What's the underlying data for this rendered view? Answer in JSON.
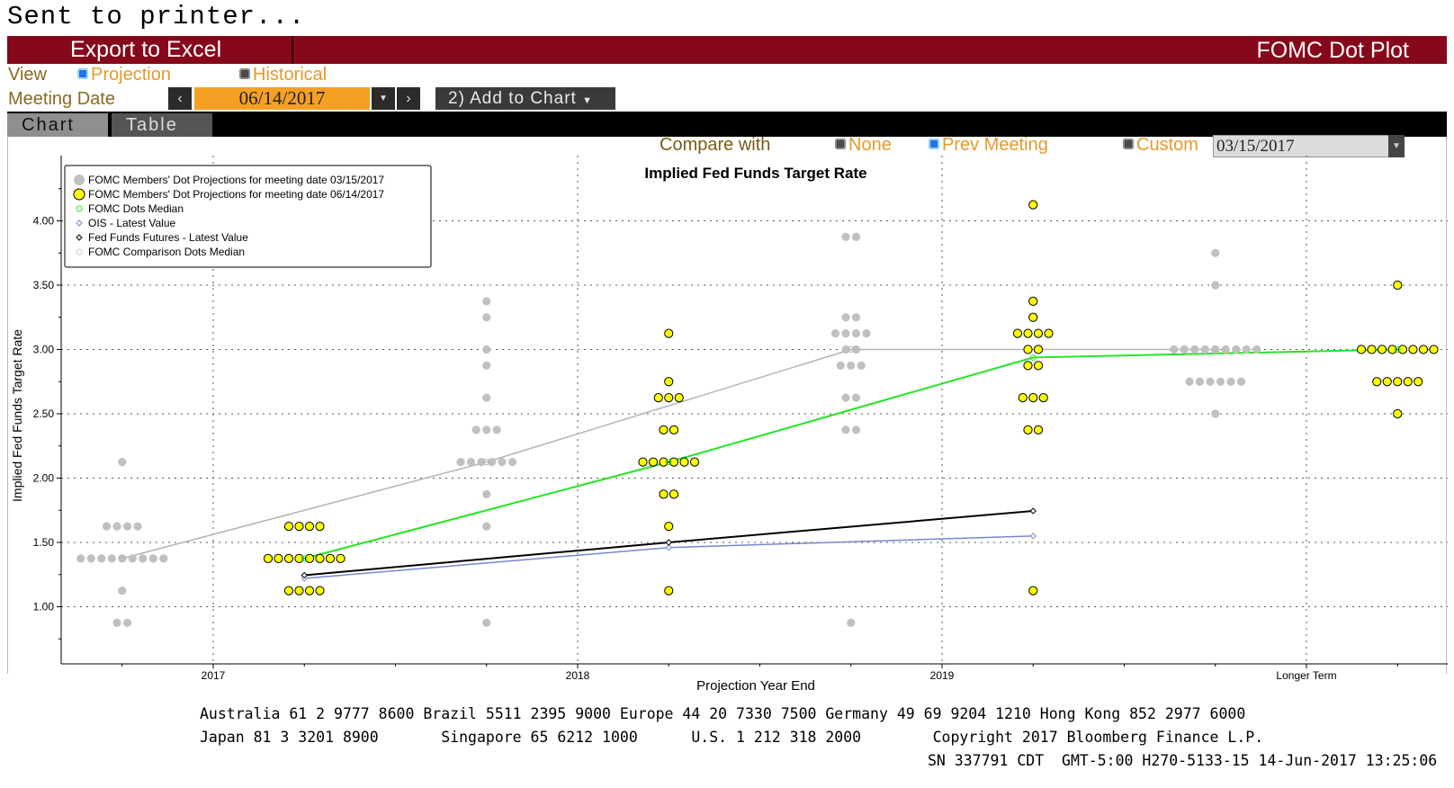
{
  "status_text": "Sent to printer...",
  "toolbar": {
    "export_label": "Export to Excel",
    "title": "FOMC Dot Plot"
  },
  "view": {
    "label": "View",
    "options": [
      "Projection",
      "Historical"
    ],
    "selected": "Projection"
  },
  "meeting": {
    "label": "Meeting Date",
    "date": "06/14/2017",
    "prev_icon": "chevron-left-icon",
    "next_icon": "chevron-right-icon",
    "dropdown_icon": "caret-down-icon"
  },
  "add_chart": {
    "label": "2) Add to Chart"
  },
  "tabs": [
    "Chart",
    "Table"
  ],
  "compare": {
    "label": "Compare with",
    "options": [
      "None",
      "Prev Meeting",
      "Custom"
    ],
    "selected": "Prev Meeting",
    "date": "03/15/2017"
  },
  "colors": {
    "accent": "#86081b",
    "orange": "#f5a024",
    "label_gold": "#8a6a1c",
    "current_dots": "#ffff00",
    "prev_dots": "#c0c0c0",
    "median_line": "#22e622",
    "comparison_median": "#b4b4b4",
    "ois": "#7a86c8",
    "futures": "#000000"
  },
  "chart_data": {
    "type": "scatter",
    "title": "Implied Fed Funds Target Rate",
    "xlabel": "Projection Year End",
    "ylabel": "Implied Fed Funds Target Rate",
    "categories": [
      "2017",
      "2018",
      "2019",
      "Longer Term"
    ],
    "yticks": [
      "1.00",
      "1.50",
      "2.00",
      "2.50",
      "3.00",
      "3.50",
      "4.00"
    ],
    "ylim": [
      0.55,
      4.5
    ],
    "grid": true,
    "legend_position": "top-left",
    "legend": [
      "FOMC Members' Dot Projections for meeting date 03/15/2017",
      "FOMC Members' Dot Projections for meeting date 06/14/2017",
      "FOMC Dots Median",
      "OIS - Latest Value",
      "Fed Funds Futures - Latest Value",
      "FOMC Comparison Dots Median"
    ],
    "series": [
      {
        "name": "FOMC Members' Dot Projections for meeting date 03/15/2017",
        "groups": [
          [
            [
              0.875,
              2
            ],
            [
              1.125,
              1
            ],
            [
              1.375,
              9
            ],
            [
              1.625,
              4
            ],
            [
              2.125,
              1
            ]
          ],
          [
            [
              0.875,
              1
            ],
            [
              1.625,
              1
            ],
            [
              1.875,
              1
            ],
            [
              2.125,
              6
            ],
            [
              2.375,
              3
            ],
            [
              2.625,
              1
            ],
            [
              2.875,
              1
            ],
            [
              3.0,
              1
            ],
            [
              3.25,
              1
            ],
            [
              3.375,
              1
            ]
          ],
          [
            [
              0.875,
              1
            ],
            [
              2.375,
              2
            ],
            [
              2.625,
              2
            ],
            [
              2.875,
              3
            ],
            [
              3.0,
              2
            ],
            [
              3.125,
              4
            ],
            [
              3.25,
              2
            ],
            [
              3.875,
              2
            ]
          ],
          [
            [
              2.5,
              1
            ],
            [
              2.75,
              6
            ],
            [
              3.0,
              9
            ],
            [
              3.5,
              1
            ],
            [
              3.75,
              1
            ]
          ]
        ]
      },
      {
        "name": "FOMC Members' Dot Projections for meeting date 06/14/2017",
        "groups": [
          [
            [
              1.125,
              4
            ],
            [
              1.375,
              8
            ],
            [
              1.625,
              4
            ]
          ],
          [
            [
              1.125,
              1
            ],
            [
              1.625,
              1
            ],
            [
              1.875,
              2
            ],
            [
              2.125,
              6
            ],
            [
              2.375,
              2
            ],
            [
              2.625,
              3
            ],
            [
              2.75,
              1
            ],
            [
              3.125,
              1
            ]
          ],
          [
            [
              1.125,
              1
            ],
            [
              2.375,
              2
            ],
            [
              2.625,
              3
            ],
            [
              2.875,
              2
            ],
            [
              3.0,
              2
            ],
            [
              3.125,
              4
            ],
            [
              3.25,
              1
            ],
            [
              3.375,
              1
            ],
            [
              4.125,
              1
            ]
          ],
          [
            [
              2.5,
              1
            ],
            [
              2.75,
              5
            ],
            [
              3.0,
              8
            ],
            [
              3.5,
              1
            ]
          ]
        ]
      },
      {
        "name": "FOMC Dots Median",
        "points": [
          [
            0.25,
            1.375
          ],
          [
            1.25,
            2.125
          ],
          [
            2.25,
            2.9375
          ],
          [
            3.25,
            3.0
          ]
        ]
      },
      {
        "name": "FOMC Comparison Dots Median",
        "points": [
          [
            -0.25,
            1.375
          ],
          [
            0.75,
            2.125
          ],
          [
            1.75,
            3.0
          ],
          [
            2.75,
            3.0
          ]
        ]
      },
      {
        "name": "OIS - Latest Value",
        "points": [
          [
            0.25,
            1.22
          ],
          [
            1.25,
            1.46
          ],
          [
            2.25,
            1.55
          ]
        ]
      },
      {
        "name": "Fed Funds Futures - Latest Value",
        "points": [
          [
            0.25,
            1.245
          ],
          [
            1.25,
            1.5
          ],
          [
            2.25,
            1.745
          ]
        ]
      }
    ]
  },
  "footer": {
    "line1": "Australia 61 2 9777 8600 Brazil 5511 2395 9000 Europe 44 20 7330 7500 Germany 49 69 9204 1210 Hong Kong 852 2977 6000",
    "line2": "Japan 81 3 3201 8900       Singapore 65 6212 1000      U.S. 1 212 318 2000        Copyright 2017 Bloomberg Finance L.P.",
    "line3": "SN 337791 CDT  GMT-5:00 H270-5133-15 14-Jun-2017 13:25:06"
  }
}
